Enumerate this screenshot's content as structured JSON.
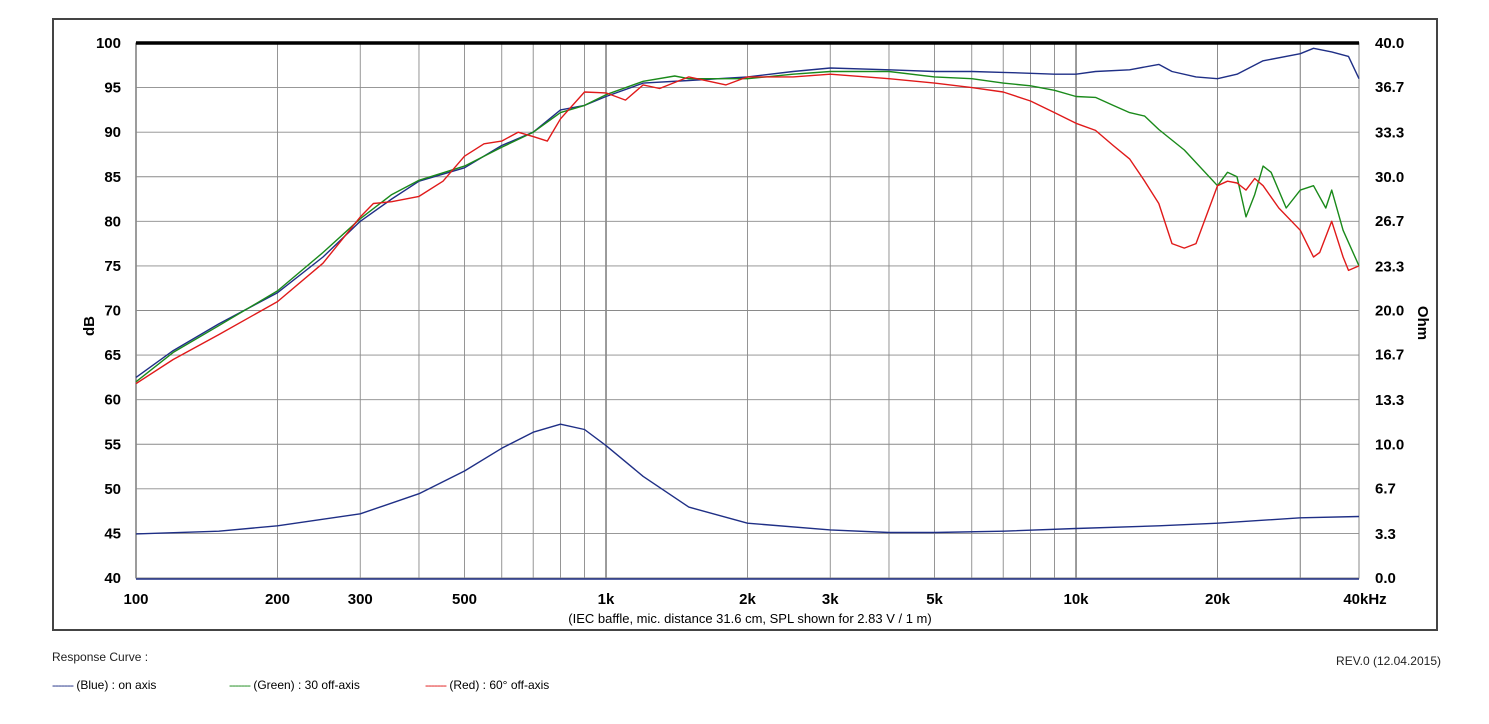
{
  "footer": {
    "response_label": "Response Curve :",
    "revision": "REV.0 (12.04.2015)",
    "legend": [
      {
        "dash": "-------",
        "text": "(Blue)  : on axis",
        "color": "#1f2f86"
      },
      {
        "dash": "-------",
        "text": "(Green) : 30 off-axis",
        "color": "#1a8a1a"
      },
      {
        "dash": "-------",
        "text": "(Red) : 60° off-axis",
        "color": "#e01a1a"
      }
    ]
  },
  "chart_data": {
    "type": "line",
    "caption": "(IEC baffle, mic. distance 31.6 cm, SPL shown for 2.83 V / 1 m)",
    "xscale": "log",
    "xlim": [
      100,
      40000
    ],
    "ylim": [
      40,
      100
    ],
    "y2lim": [
      0,
      40
    ],
    "ylabel": "dB",
    "y2label": "Ohm",
    "grid": true,
    "x_ticks": [
      {
        "value": 100,
        "label": "100"
      },
      {
        "value": 200,
        "label": "200"
      },
      {
        "value": 300,
        "label": "300"
      },
      {
        "value": 500,
        "label": "500"
      },
      {
        "value": 1000,
        "label": "1k"
      },
      {
        "value": 2000,
        "label": "2k"
      },
      {
        "value": 3000,
        "label": "3k"
      },
      {
        "value": 5000,
        "label": "5k"
      },
      {
        "value": 10000,
        "label": "10k"
      },
      {
        "value": 20000,
        "label": "20k"
      },
      {
        "value": 40000,
        "label": "40kHz"
      }
    ],
    "y_ticks": [
      "40",
      "45",
      "50",
      "55",
      "60",
      "65",
      "70",
      "75",
      "80",
      "85",
      "90",
      "95",
      "100"
    ],
    "y2_ticks": [
      "0.0",
      "3.3",
      "6.7",
      "10.0",
      "13.3",
      "16.7",
      "20.0",
      "23.3",
      "26.7",
      "30.0",
      "33.3",
      "36.7",
      "40.0"
    ],
    "series": [
      {
        "color": "#1f2f86",
        "axis": "left",
        "points": [
          [
            100,
            62.5
          ],
          [
            120,
            65.5
          ],
          [
            150,
            68.5
          ],
          [
            200,
            72
          ],
          [
            250,
            76
          ],
          [
            300,
            80
          ],
          [
            350,
            82.5
          ],
          [
            400,
            84.5
          ],
          [
            500,
            86
          ],
          [
            600,
            88.5
          ],
          [
            700,
            90
          ],
          [
            800,
            92.5
          ],
          [
            900,
            93
          ],
          [
            1000,
            94
          ],
          [
            1200,
            95.5
          ],
          [
            1500,
            95.8
          ],
          [
            2000,
            96.2
          ],
          [
            2500,
            96.8
          ],
          [
            3000,
            97.2
          ],
          [
            4000,
            97
          ],
          [
            5000,
            96.8
          ],
          [
            6000,
            96.8
          ],
          [
            7000,
            96.7
          ],
          [
            8000,
            96.6
          ],
          [
            9000,
            96.5
          ],
          [
            10000,
            96.5
          ],
          [
            11000,
            96.8
          ],
          [
            13000,
            97
          ],
          [
            15000,
            97.6
          ],
          [
            16000,
            96.8
          ],
          [
            18000,
            96.2
          ],
          [
            20000,
            96
          ],
          [
            22000,
            96.5
          ],
          [
            25000,
            98
          ],
          [
            30000,
            98.8
          ],
          [
            32000,
            99.4
          ],
          [
            35000,
            99
          ],
          [
            38000,
            98.5
          ],
          [
            40000,
            96
          ]
        ]
      },
      {
        "color": "#1a8a1a",
        "axis": "left",
        "points": [
          [
            100,
            62
          ],
          [
            120,
            65.3
          ],
          [
            150,
            68.3
          ],
          [
            200,
            72.2
          ],
          [
            250,
            76.5
          ],
          [
            300,
            80.3
          ],
          [
            350,
            83
          ],
          [
            400,
            84.6
          ],
          [
            500,
            86.2
          ],
          [
            600,
            88.3
          ],
          [
            700,
            90
          ],
          [
            800,
            92.2
          ],
          [
            900,
            93
          ],
          [
            1000,
            94.2
          ],
          [
            1200,
            95.7
          ],
          [
            1400,
            96.3
          ],
          [
            1500,
            96
          ],
          [
            2000,
            96
          ],
          [
            2500,
            96.5
          ],
          [
            3000,
            96.8
          ],
          [
            4000,
            96.8
          ],
          [
            5000,
            96.2
          ],
          [
            6000,
            96
          ],
          [
            7000,
            95.5
          ],
          [
            8000,
            95.2
          ],
          [
            9000,
            94.7
          ],
          [
            10000,
            94
          ],
          [
            11000,
            93.9
          ],
          [
            12000,
            93
          ],
          [
            13000,
            92.2
          ],
          [
            14000,
            91.8
          ],
          [
            15000,
            90.3
          ],
          [
            17000,
            88
          ],
          [
            20000,
            84
          ],
          [
            21000,
            85.5
          ],
          [
            22000,
            85
          ],
          [
            23000,
            80.5
          ],
          [
            24000,
            83
          ],
          [
            25000,
            86.2
          ],
          [
            26000,
            85.5
          ],
          [
            28000,
            81.5
          ],
          [
            30000,
            83.5
          ],
          [
            32000,
            84
          ],
          [
            34000,
            81.5
          ],
          [
            35000,
            83.5
          ],
          [
            37000,
            79
          ],
          [
            40000,
            75
          ]
        ]
      },
      {
        "color": "#e01a1a",
        "axis": "left",
        "points": [
          [
            100,
            61.8
          ],
          [
            120,
            64.5
          ],
          [
            150,
            67.3
          ],
          [
            200,
            71
          ],
          [
            250,
            75.3
          ],
          [
            300,
            80.5
          ],
          [
            320,
            82
          ],
          [
            350,
            82.2
          ],
          [
            400,
            82.8
          ],
          [
            450,
            84.5
          ],
          [
            500,
            87.3
          ],
          [
            550,
            88.7
          ],
          [
            600,
            89
          ],
          [
            650,
            90
          ],
          [
            700,
            89.5
          ],
          [
            750,
            89
          ],
          [
            800,
            91.5
          ],
          [
            900,
            94.5
          ],
          [
            1000,
            94.4
          ],
          [
            1100,
            93.6
          ],
          [
            1200,
            95.3
          ],
          [
            1300,
            94.9
          ],
          [
            1500,
            96.2
          ],
          [
            1800,
            95.3
          ],
          [
            2000,
            96.2
          ],
          [
            2500,
            96.2
          ],
          [
            3000,
            96.5
          ],
          [
            4000,
            96
          ],
          [
            5000,
            95.5
          ],
          [
            6000,
            95
          ],
          [
            7000,
            94.5
          ],
          [
            8000,
            93.5
          ],
          [
            9000,
            92.2
          ],
          [
            10000,
            91
          ],
          [
            11000,
            90.2
          ],
          [
            12000,
            88.5
          ],
          [
            13000,
            87
          ],
          [
            14000,
            84.5
          ],
          [
            15000,
            82
          ],
          [
            16000,
            77.5
          ],
          [
            17000,
            77
          ],
          [
            18000,
            77.5
          ],
          [
            20000,
            84
          ],
          [
            21000,
            84.5
          ],
          [
            22000,
            84.3
          ],
          [
            23000,
            83.5
          ],
          [
            24000,
            84.8
          ],
          [
            25000,
            84
          ],
          [
            27000,
            81.5
          ],
          [
            30000,
            79
          ],
          [
            32000,
            76
          ],
          [
            33000,
            76.5
          ],
          [
            35000,
            80
          ],
          [
            37000,
            76
          ],
          [
            38000,
            74.5
          ],
          [
            40000,
            75
          ]
        ]
      },
      {
        "color": "#1f2f86",
        "axis": "right",
        "points": [
          [
            100,
            3.3
          ],
          [
            150,
            3.5
          ],
          [
            200,
            3.9
          ],
          [
            300,
            4.8
          ],
          [
            400,
            6.3
          ],
          [
            500,
            8
          ],
          [
            600,
            9.7
          ],
          [
            700,
            10.9
          ],
          [
            800,
            11.5
          ],
          [
            900,
            11.1
          ],
          [
            1000,
            9.9
          ],
          [
            1200,
            7.6
          ],
          [
            1500,
            5.3
          ],
          [
            2000,
            4.1
          ],
          [
            3000,
            3.6
          ],
          [
            4000,
            3.4
          ],
          [
            5000,
            3.4
          ],
          [
            7000,
            3.5
          ],
          [
            10000,
            3.7
          ],
          [
            15000,
            3.9
          ],
          [
            20000,
            4.1
          ],
          [
            30000,
            4.5
          ],
          [
            40000,
            4.6
          ]
        ]
      }
    ]
  }
}
